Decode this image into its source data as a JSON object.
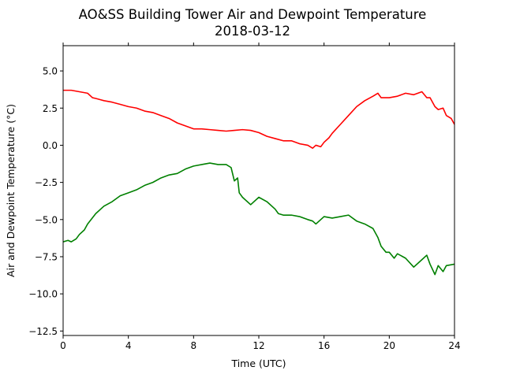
{
  "chart_data": {
    "type": "line",
    "title": "AO&SS Building Tower Air and Dewpoint Temperature",
    "subtitle": "2018-03-12",
    "xlabel": "Time (UTC)",
    "ylabel": "Air and Dewpoint Temperature (°C)",
    "xlim": [
      0,
      24
    ],
    "ylim": [
      -12.8,
      6.7
    ],
    "xticks": [
      0,
      4,
      8,
      12,
      16,
      20,
      24
    ],
    "yticks": [
      5.0,
      2.5,
      0.0,
      -2.5,
      -5.0,
      -7.5,
      -10.0,
      -12.5
    ],
    "ytick_labels": [
      "5.0",
      "2.5",
      "0.0",
      "−2.5",
      "−5.0",
      "−7.5",
      "−10.0",
      "−12.5"
    ],
    "grid": false,
    "legend": "none",
    "series": [
      {
        "color": "#ff0000",
        "x": [
          0,
          0.5,
          1,
          1.5,
          1.8,
          2,
          2.5,
          3,
          3.5,
          4,
          4.5,
          5,
          5.5,
          6,
          6.5,
          7,
          7.5,
          8,
          8.5,
          9,
          9.5,
          10,
          10.5,
          11,
          11.5,
          12,
          12.5,
          13,
          13.5,
          14,
          14.5,
          15,
          15.3,
          15.5,
          15.8,
          16,
          16.3,
          16.5,
          17,
          17.5,
          18,
          18.5,
          19,
          19.3,
          19.5,
          20,
          20.5,
          21,
          21.5,
          22,
          22.3,
          22.5,
          22.8,
          23,
          23.3,
          23.5,
          23.8,
          24
        ],
        "y": [
          3.7,
          3.7,
          3.6,
          3.5,
          3.2,
          3.15,
          3.0,
          2.9,
          2.75,
          2.6,
          2.5,
          2.3,
          2.2,
          2.0,
          1.8,
          1.5,
          1.3,
          1.1,
          1.1,
          1.05,
          1.0,
          0.95,
          1.0,
          1.05,
          1.0,
          0.85,
          0.6,
          0.45,
          0.3,
          0.3,
          0.1,
          0.0,
          -0.2,
          0.0,
          -0.1,
          0.2,
          0.5,
          0.8,
          1.4,
          2.0,
          2.6,
          3.0,
          3.3,
          3.5,
          3.2,
          3.2,
          3.3,
          3.5,
          3.4,
          3.6,
          3.2,
          3.2,
          2.6,
          2.4,
          2.5,
          2.0,
          1.8,
          1.4
        ]
      },
      {
        "color": "#008000",
        "x": [
          0,
          0.3,
          0.5,
          0.8,
          1,
          1.3,
          1.5,
          2,
          2.5,
          3,
          3.5,
          4,
          4.5,
          5,
          5.5,
          6,
          6.5,
          7,
          7.5,
          8,
          8.5,
          9,
          9.5,
          10,
          10.3,
          10.5,
          10.7,
          10.8,
          11,
          11.3,
          11.5,
          12,
          12.5,
          13,
          13.2,
          13.5,
          14,
          14.5,
          15,
          15.3,
          15.5,
          16,
          16.5,
          17,
          17.5,
          18,
          18.5,
          19,
          19.3,
          19.5,
          19.8,
          20,
          20.3,
          20.5,
          21,
          21.5,
          22,
          22.3,
          22.5,
          22.8,
          23,
          23.3,
          23.5,
          24
        ],
        "y": [
          -6.5,
          -6.4,
          -6.5,
          -6.3,
          -6.0,
          -5.7,
          -5.3,
          -4.6,
          -4.1,
          -3.8,
          -3.4,
          -3.2,
          -3.0,
          -2.7,
          -2.5,
          -2.2,
          -2.0,
          -1.9,
          -1.6,
          -1.4,
          -1.3,
          -1.2,
          -1.3,
          -1.3,
          -1.5,
          -2.4,
          -2.2,
          -3.2,
          -3.5,
          -3.8,
          -4.0,
          -3.5,
          -3.8,
          -4.3,
          -4.6,
          -4.7,
          -4.7,
          -4.8,
          -5.0,
          -5.1,
          -5.3,
          -4.8,
          -4.9,
          -4.8,
          -4.7,
          -5.1,
          -5.3,
          -5.6,
          -6.2,
          -6.8,
          -7.2,
          -7.2,
          -7.6,
          -7.3,
          -7.6,
          -8.2,
          -7.7,
          -7.4,
          -8.0,
          -8.7,
          -8.1,
          -8.5,
          -8.1,
          -8.0
        ]
      }
    ]
  }
}
